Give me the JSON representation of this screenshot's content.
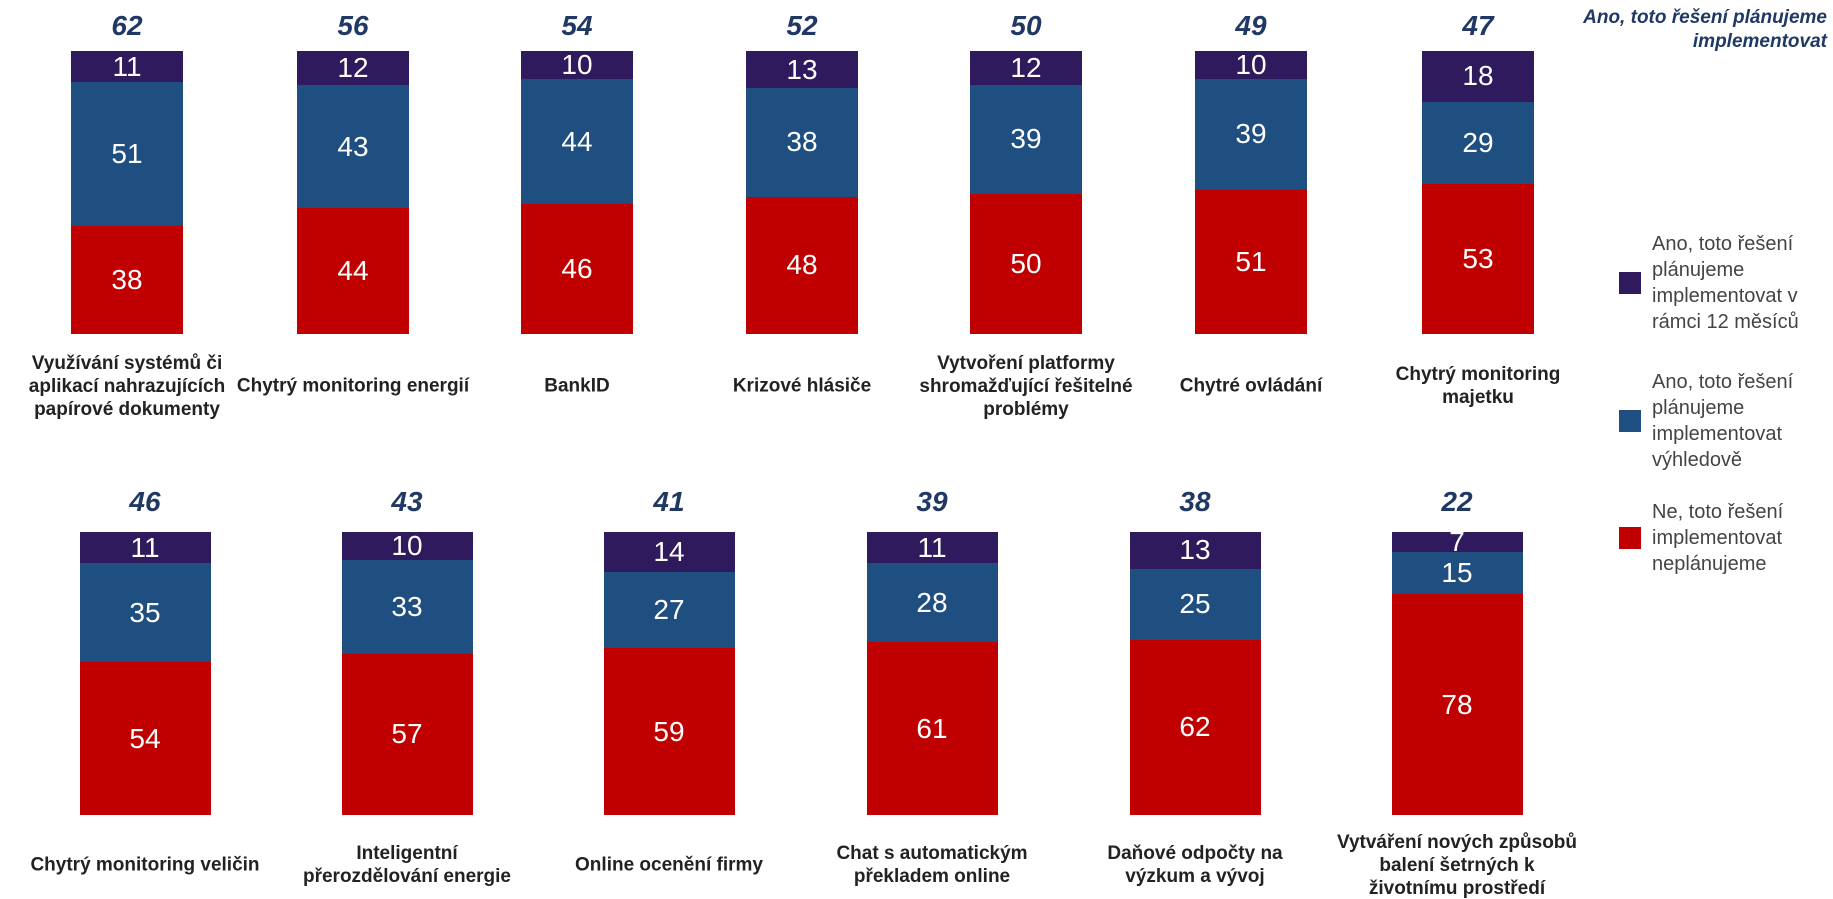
{
  "chart_data": {
    "type": "stacked_bar",
    "categories": [
      "Využívání systémů či aplikací nahrazujících papírové dokumenty",
      "Chytrý monitoring energií",
      "BankID",
      "Krizové hlásiče",
      "Vytvoření platformy shromažďující řešitelné problémy",
      "Chytré ovládání",
      "Chytrý monitoring majetku",
      "Chytrý monitoring veličin",
      "Inteligentní přerozdělování energie",
      "Online ocenění firmy",
      "Chat s automatickým překladem online",
      "Daňové odpočty na výzkum a vývoj",
      "Vytváření nových způsobů balení šetrných k životnímu prostředí"
    ],
    "series": [
      {
        "name": "Ano, toto řešení plánujeme implementovat v rámci 12 měsíců",
        "color": "#2e1a5c",
        "values": [
          11,
          12,
          10,
          13,
          12,
          10,
          18,
          11,
          10,
          14,
          11,
          13,
          7
        ]
      },
      {
        "name": "Ano, toto řešení plánujeme implementovat výhledově",
        "color": "#1f4e80",
        "values": [
          51,
          43,
          44,
          38,
          39,
          39,
          29,
          35,
          33,
          27,
          28,
          25,
          15
        ]
      },
      {
        "name": "Ne, toto řešení implementovat neplánujeme",
        "color": "#c00000",
        "values": [
          38,
          44,
          46,
          48,
          50,
          51,
          53,
          54,
          57,
          59,
          61,
          62,
          78
        ]
      }
    ],
    "totals": {
      "name": "Ano, toto řešení plánujeme implementovat",
      "values": [
        62,
        56,
        54,
        52,
        50,
        49,
        47,
        46,
        43,
        41,
        39,
        38,
        22
      ]
    }
  }
}
